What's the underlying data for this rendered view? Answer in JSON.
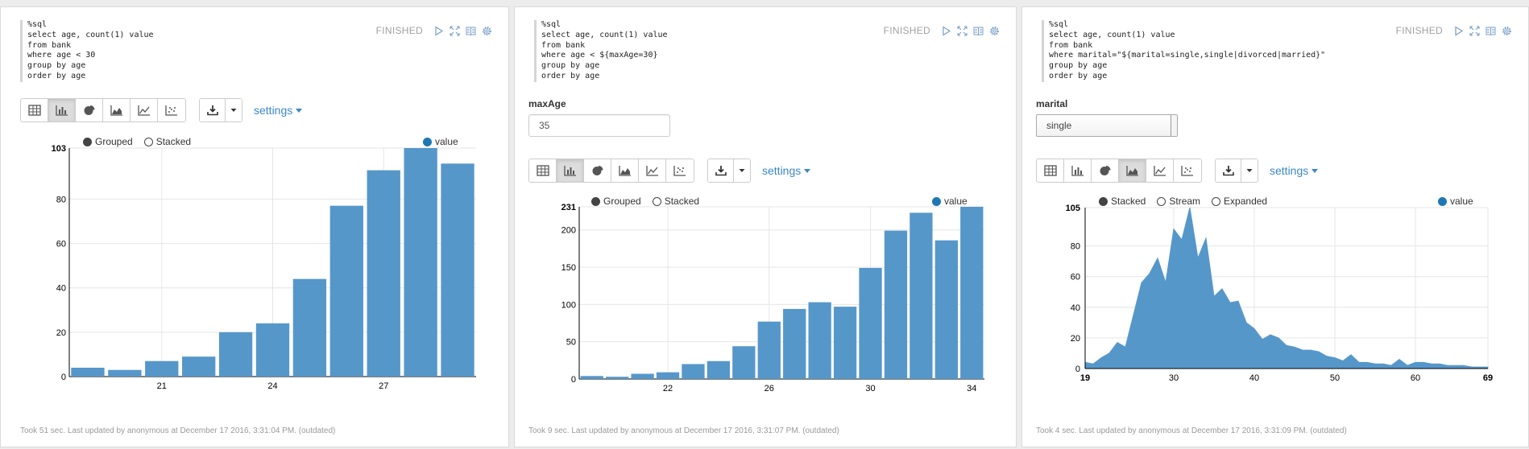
{
  "colors": {
    "accent": "#3a87c8",
    "bar": "#5697ca",
    "series": "#1f77b4",
    "grid": "#e6e6e6"
  },
  "paragraphs": [
    {
      "code": "%sql\nselect age, count(1) value\nfrom bank\nwhere age < 30\ngroup by age\norder by age",
      "status": "FINISHED",
      "settings_label": "settings",
      "legend": {
        "mode1": "Grouped",
        "mode2": "Stacked",
        "series": "value"
      },
      "footer": "Took 51 sec. Last updated by anonymous at December 17 2016, 3:31:04 PM. (outdated)"
    },
    {
      "code": "%sql\nselect age, count(1) value\nfrom bank\nwhere age < ${maxAge=30}\ngroup by age\norder by age",
      "status": "FINISHED",
      "form_label": "maxAge",
      "form_value": "35",
      "settings_label": "settings",
      "legend": {
        "mode1": "Grouped",
        "mode2": "Stacked",
        "series": "value"
      },
      "footer": "Took 9 sec. Last updated by anonymous at December 17 2016, 3:31:07 PM. (outdated)"
    },
    {
      "code": "%sql\nselect age, count(1) value\nfrom bank\nwhere marital=\"${marital=single,single|divorced|married}\"\ngroup by age\norder by age",
      "status": "FINISHED",
      "form_label": "marital",
      "form_value": "single",
      "settings_label": "settings",
      "legend": {
        "mode1": "Stacked",
        "mode2": "Stream",
        "mode3": "Expanded",
        "series": "value"
      },
      "footer": "Took 4 sec. Last updated by anonymous at December 17 2016, 3:31:09 PM. (outdated)"
    }
  ],
  "chart_data": [
    {
      "type": "bar",
      "series": [
        {
          "name": "value",
          "x": [
            19,
            20,
            21,
            22,
            23,
            24,
            25,
            26,
            27,
            28,
            29
          ],
          "values": [
            4,
            3,
            7,
            9,
            20,
            24,
            44,
            77,
            93,
            103,
            96
          ]
        }
      ],
      "x_ticks": [
        "21",
        "24",
        "27"
      ],
      "y_ticks": [
        "0",
        "20",
        "40",
        "60",
        "80",
        "103"
      ],
      "ylim": [
        0,
        103
      ],
      "grid": true,
      "legend_position": "top-right"
    },
    {
      "type": "bar",
      "series": [
        {
          "name": "value",
          "x": [
            19,
            20,
            21,
            22,
            23,
            24,
            25,
            26,
            27,
            28,
            29,
            30,
            31,
            32,
            33,
            34
          ],
          "values": [
            4,
            3,
            7,
            9,
            20,
            24,
            44,
            77,
            94,
            103,
            97,
            149,
            199,
            223,
            186,
            231
          ]
        }
      ],
      "x_ticks": [
        "22",
        "26",
        "30",
        "34"
      ],
      "y_ticks": [
        "0",
        "50",
        "100",
        "150",
        "200",
        "231"
      ],
      "ylim": [
        0,
        231
      ],
      "grid": true,
      "legend_position": "top-right"
    },
    {
      "type": "area",
      "series": [
        {
          "name": "value",
          "x": [
            19,
            20,
            21,
            22,
            23,
            24,
            25,
            26,
            27,
            28,
            29,
            30,
            31,
            32,
            33,
            34,
            35,
            36,
            37,
            38,
            39,
            40,
            41,
            42,
            43,
            44,
            45,
            46,
            47,
            48,
            49,
            50,
            51,
            52,
            53,
            54,
            55,
            56,
            57,
            58,
            59,
            60,
            61,
            62,
            63,
            64,
            65,
            66,
            67,
            68,
            69
          ],
          "values": [
            4,
            3,
            7,
            10,
            17,
            14,
            35,
            56,
            62,
            72,
            56,
            91,
            84,
            105,
            72,
            85,
            47,
            52,
            43,
            44,
            30,
            26,
            19,
            22,
            20,
            15,
            14,
            12,
            12,
            11,
            8,
            7,
            5,
            9,
            4,
            4,
            3,
            3,
            2,
            6,
            2,
            4,
            4,
            3,
            3,
            2,
            2,
            2,
            1,
            1,
            1
          ]
        }
      ],
      "x_ticks": [
        "19",
        "30",
        "40",
        "50",
        "60",
        "69"
      ],
      "y_ticks": [
        "0",
        "20",
        "40",
        "60",
        "80",
        "105"
      ],
      "xlim": [
        19,
        69
      ],
      "ylim": [
        0,
        105
      ],
      "grid": true,
      "legend_position": "top-right"
    }
  ]
}
